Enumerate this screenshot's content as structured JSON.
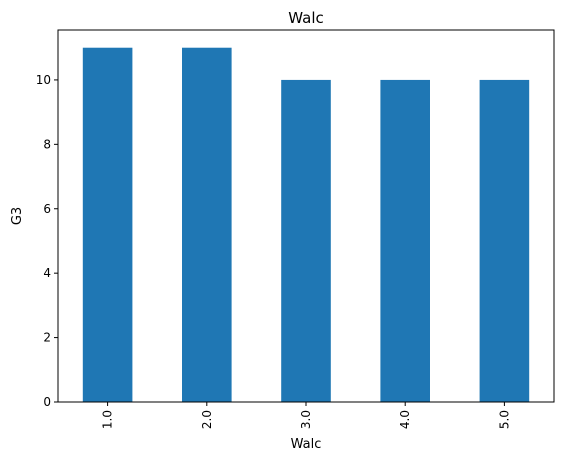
{
  "chart_data": {
    "type": "bar",
    "title": "Walc",
    "xlabel": "Walc",
    "ylabel": "G3",
    "categories": [
      "1.0",
      "2.0",
      "3.0",
      "4.0",
      "5.0"
    ],
    "values": [
      11,
      11,
      10,
      10,
      10
    ],
    "ylim": [
      0,
      11.55
    ],
    "yticks": [
      0,
      2,
      4,
      6,
      8,
      10
    ],
    "ytick_labels": [
      "0",
      "2",
      "4",
      "6",
      "8",
      "10"
    ],
    "bar_color": "#1f77b4",
    "grid": false,
    "legend": "none"
  }
}
